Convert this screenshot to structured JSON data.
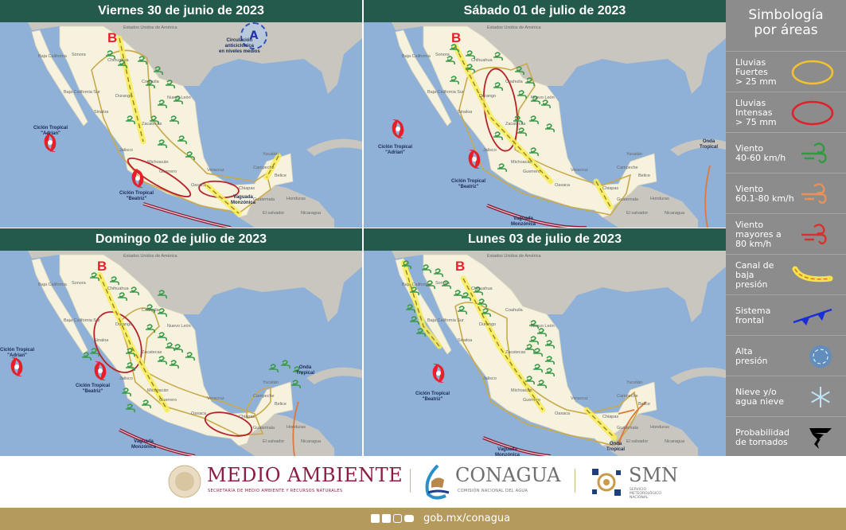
{
  "panels": [
    {
      "title": "Viernes 30 de junio de 2023",
      "low": "B",
      "high": "A",
      "high_label": "Circulación\nanticiclónica\nen niveles medios",
      "cyclones": [
        "Ciclón Tropical\n\"Adrian\"",
        "Ciclón Tropical\n\"Beatriz\""
      ],
      "trough": "Vaguada\nMonzónica"
    },
    {
      "title": "Sábado 01 de julio de 2023",
      "low": "B",
      "cyclones": [
        "Ciclón Tropical\n\"Adrian\"",
        "Ciclón Tropical\n\"Beatriz\""
      ],
      "trough": "Vaguada\nMonzónica",
      "wave": "Onda\nTropical"
    },
    {
      "title": "Domingo 02 de julio de 2023",
      "low": "B",
      "cyclones": [
        "Ciclón Tropical\n\"Adrian\"",
        "Ciclón Tropical\n\"Beatriz\""
      ],
      "trough": "Vaguada\nMonzónica",
      "wave": "Onda\nTropical"
    },
    {
      "title": "Lunes 03 de julio de 2023",
      "low": "B",
      "cyclones": [
        "Ciclón Tropical\n\"Beatriz\""
      ],
      "trough": "Vaguada\nMonzónica",
      "wave": "Onda\nTropical"
    }
  ],
  "map_labels": [
    "Estados Unidos de América",
    "Sonora",
    "Chihuahua",
    "Coahuila",
    "Nuevo León",
    "Durango",
    "Sinaloa",
    "Zacatecas",
    "Jalisco",
    "Michoacán",
    "Guerrero",
    "Oaxaca",
    "Veracruz",
    "Chiapas",
    "Yucatán",
    "Campeche",
    "Belice",
    "Guatemala",
    "Honduras",
    "El salvador",
    "Nicaragua",
    "Baja California",
    "Baja California Sur"
  ],
  "legend": {
    "title": "Simbología\npor áreas",
    "items": [
      {
        "label": "Lluvias\nFuertes\n> 25 mm",
        "icon": "yellow-ellipse",
        "color": "#f2c12e"
      },
      {
        "label": "Lluvias\nIntensas\n> 75 mm",
        "icon": "red-ellipse",
        "color": "#e0202a"
      },
      {
        "label": "Viento\n40-60 km/h",
        "icon": "wind",
        "color": "#2f9a3e"
      },
      {
        "label": "Viento\n60.1-80 km/h",
        "icon": "wind",
        "color": "#e8925a"
      },
      {
        "label": "Viento\nmayores a\n80 km/h",
        "icon": "wind",
        "color": "#d9302c"
      },
      {
        "label": "Canal de\nbaja\npresión",
        "icon": "trough-line",
        "color": "#f5e34a"
      },
      {
        "label": "Sistema\nfrontal",
        "icon": "cold-front",
        "color": "#1a2ed8"
      },
      {
        "label": "Alta\npresión",
        "icon": "high-pressure",
        "color": "#2f7fd0"
      },
      {
        "label": "Nieve y/o\nagua nieve",
        "icon": "snowflake",
        "color": "#bfe3f7"
      },
      {
        "label": "Probabilidad\nde tornados",
        "icon": "tornado",
        "color": "#000000"
      }
    ]
  },
  "footer": {
    "semarnat": "MEDIO AMBIENTE",
    "semarnat_sub": "SECRETARÍA DE MEDIO AMBIENTE Y RECURSOS NATURALES",
    "conagua": "CONAGUA",
    "conagua_sub": "COMISIÓN NACIONAL DEL AGUA",
    "smn": "SMN",
    "smn_sub": "SERVICIO\nMETEOROLÓGICO\nNACIONAL",
    "url": "gob.mx/conagua",
    "social": [
      "facebook",
      "twitter",
      "instagram",
      "youtube"
    ]
  }
}
